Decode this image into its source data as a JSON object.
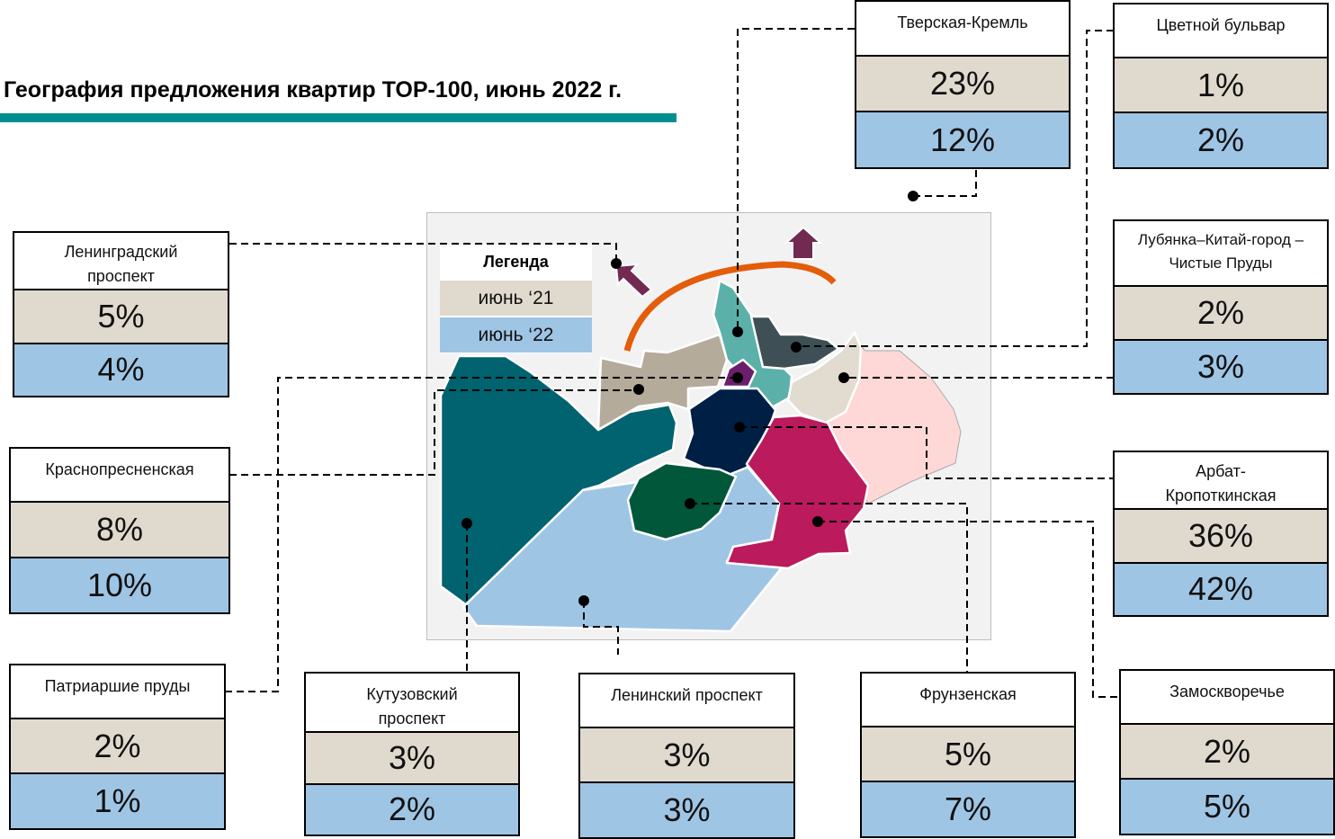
{
  "title": "География предложения квартир TOP-100, июнь 2022 г.",
  "legend": {
    "title": "Легенда",
    "items": [
      {
        "label": "июнь ‘21",
        "color": "#e0d9ce"
      },
      {
        "label": "июнь ‘22",
        "color": "#9fc5e5"
      }
    ]
  },
  "districts": [
    {
      "name": "Тверская-Кремль",
      "jun21": "23%",
      "jun22": "12%"
    },
    {
      "name": "Цветной бульвар",
      "jun21": "1%",
      "jun22": "2%"
    },
    {
      "name": "Лубянка–Китай-город – Чистые Пруды",
      "jun21": "2%",
      "jun22": "3%"
    },
    {
      "name": "Арбат-Кропоткинская",
      "jun21": "36%",
      "jun22": "42%"
    },
    {
      "name": "Замоскворечье",
      "jun21": "2%",
      "jun22": "5%"
    },
    {
      "name": "Фрунзенская",
      "jun21": "5%",
      "jun22": "7%"
    },
    {
      "name": "Ленинский проспект",
      "jun21": "3%",
      "jun22": "3%"
    },
    {
      "name": "Кутузовский проспект",
      "jun21": "3%",
      "jun22": "2%"
    },
    {
      "name": "Патриаршие пруды",
      "jun21": "2%",
      "jun22": "1%"
    },
    {
      "name": "Краснопресненская",
      "jun21": "8%",
      "jun22": "10%"
    },
    {
      "name": "Ленинградский проспект",
      "jun21": "5%",
      "jun22": "4%"
    }
  ],
  "colors": {
    "accent": "#008f91",
    "jun21": "#e0d9ce",
    "jun22": "#9fc5e5",
    "ring": "#e35d0a",
    "arrow": "#722952"
  }
}
